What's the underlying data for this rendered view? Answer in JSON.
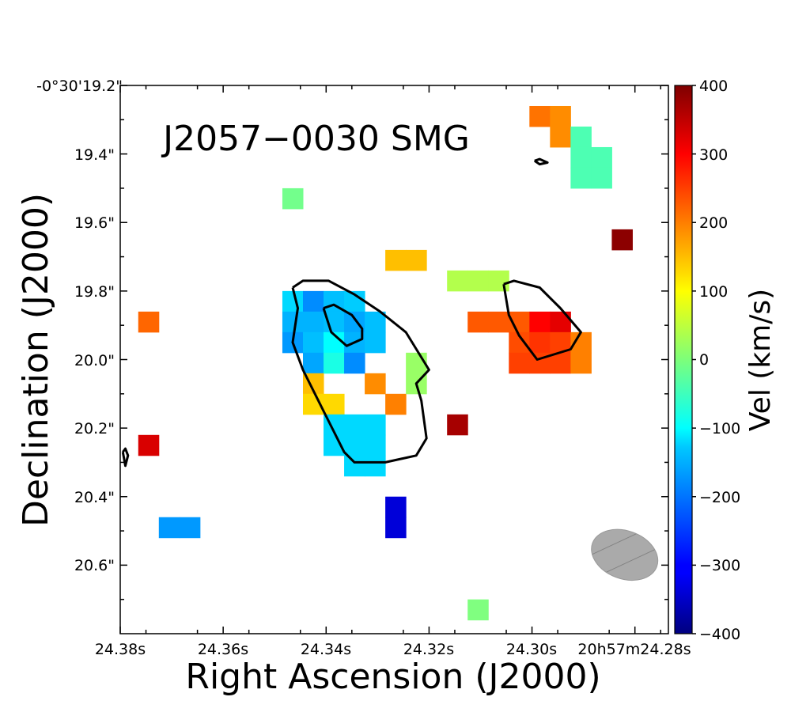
{
  "chart_data": {
    "type": "heatmap",
    "title": "J2057−0030 SMG",
    "xlabel": "Right Ascension (J2000)",
    "ylabel": "Declination (J2000)",
    "xlim": [
      24.38,
      24.2735
    ],
    "ylim": [
      20.8,
      19.2
    ],
    "x_tick_values": [
      24.38,
      24.36,
      24.34,
      24.32,
      24.3,
      24.28
    ],
    "x_tick_labels": [
      "24.38s",
      "24.36s",
      "24.34s",
      "24.32s",
      "24.30s",
      "20h57m24.28s"
    ],
    "y_tick_values": [
      19.2,
      19.4,
      19.6,
      19.8,
      20.0,
      20.2,
      20.4,
      20.6
    ],
    "y_tick_labels": [
      "-0°30'19.2\"",
      "19.4\"",
      "19.6\"",
      "19.8\"",
      "20.0\"",
      "20.2\"",
      "20.4\"",
      "20.6\""
    ],
    "colorbar": {
      "label": "Vel (km/s)",
      "vmin": -400,
      "vmax": 400,
      "tick_values": [
        400,
        300,
        200,
        100,
        0,
        -100,
        -200,
        -300,
        -400
      ],
      "tick_labels": [
        "400",
        "300",
        "200",
        "100",
        "0",
        "−100",
        "−200",
        "−300",
        "−400"
      ]
    },
    "pixel_size_ra_s": 0.004,
    "pixel_size_dec_arcsec": 0.06,
    "pixels": [
      {
        "ra": 24.2985,
        "dec": 19.29,
        "vel": 210
      },
      {
        "ra": 24.2945,
        "dec": 19.29,
        "vel": 190
      },
      {
        "ra": 24.2945,
        "dec": 19.35,
        "vel": 190
      },
      {
        "ra": 24.2905,
        "dec": 19.35,
        "vel": -40
      },
      {
        "ra": 24.2905,
        "dec": 19.41,
        "vel": -40
      },
      {
        "ra": 24.2865,
        "dec": 19.41,
        "vel": -40
      },
      {
        "ra": 24.2905,
        "dec": 19.47,
        "vel": -40
      },
      {
        "ra": 24.2865,
        "dec": 19.47,
        "vel": -40
      },
      {
        "ra": 24.2825,
        "dec": 19.65,
        "vel": 390
      },
      {
        "ra": 24.3465,
        "dec": 19.53,
        "vel": -10
      },
      {
        "ra": 24.3265,
        "dec": 19.71,
        "vel": 150
      },
      {
        "ra": 24.3225,
        "dec": 19.71,
        "vel": 150
      },
      {
        "ra": 24.3145,
        "dec": 19.77,
        "vel": 40
      },
      {
        "ra": 24.3105,
        "dec": 19.77,
        "vel": 40
      },
      {
        "ra": 24.3065,
        "dec": 19.77,
        "vel": 40
      },
      {
        "ra": 24.3745,
        "dec": 19.89,
        "vel": 220
      },
      {
        "ra": 24.3465,
        "dec": 19.83,
        "vel": -130
      },
      {
        "ra": 24.3425,
        "dec": 19.83,
        "vel": -190
      },
      {
        "ra": 24.3385,
        "dec": 19.83,
        "vel": -150
      },
      {
        "ra": 24.3345,
        "dec": 19.83,
        "vel": -140
      },
      {
        "ra": 24.3465,
        "dec": 19.89,
        "vel": -160
      },
      {
        "ra": 24.3425,
        "dec": 19.89,
        "vel": -160
      },
      {
        "ra": 24.3385,
        "dec": 19.89,
        "vel": -150
      },
      {
        "ra": 24.3345,
        "dec": 19.89,
        "vel": -170
      },
      {
        "ra": 24.3305,
        "dec": 19.89,
        "vel": -150
      },
      {
        "ra": 24.3465,
        "dec": 19.95,
        "vel": -180
      },
      {
        "ra": 24.3425,
        "dec": 19.95,
        "vel": -150
      },
      {
        "ra": 24.3385,
        "dec": 19.95,
        "vel": -100
      },
      {
        "ra": 24.3345,
        "dec": 19.95,
        "vel": -160
      },
      {
        "ra": 24.3305,
        "dec": 19.95,
        "vel": -150
      },
      {
        "ra": 24.3425,
        "dec": 20.01,
        "vel": -170
      },
      {
        "ra": 24.3385,
        "dec": 20.01,
        "vel": -80
      },
      {
        "ra": 24.3345,
        "dec": 20.01,
        "vel": -190
      },
      {
        "ra": 24.3425,
        "dec": 20.07,
        "vel": 150
      },
      {
        "ra": 24.3425,
        "dec": 20.13,
        "vel": 130
      },
      {
        "ra": 24.3385,
        "dec": 20.13,
        "vel": 130
      },
      {
        "ra": 24.3305,
        "dec": 20.07,
        "vel": 190
      },
      {
        "ra": 24.3265,
        "dec": 20.13,
        "vel": 200
      },
      {
        "ra": 24.3225,
        "dec": 20.01,
        "vel": 20
      },
      {
        "ra": 24.3225,
        "dec": 20.07,
        "vel": 20
      },
      {
        "ra": 24.3385,
        "dec": 20.19,
        "vel": -130
      },
      {
        "ra": 24.3345,
        "dec": 20.19,
        "vel": -130
      },
      {
        "ra": 24.3305,
        "dec": 20.19,
        "vel": -130
      },
      {
        "ra": 24.3385,
        "dec": 20.25,
        "vel": -130
      },
      {
        "ra": 24.3345,
        "dec": 20.25,
        "vel": -130
      },
      {
        "ra": 24.3305,
        "dec": 20.25,
        "vel": -130
      },
      {
        "ra": 24.3345,
        "dec": 20.31,
        "vel": -130
      },
      {
        "ra": 24.3305,
        "dec": 20.31,
        "vel": -130
      },
      {
        "ra": 24.3145,
        "dec": 20.19,
        "vel": 370
      },
      {
        "ra": 24.3745,
        "dec": 20.25,
        "vel": 330
      },
      {
        "ra": 24.3265,
        "dec": 20.43,
        "vel": -330
      },
      {
        "ra": 24.3265,
        "dec": 20.49,
        "vel": -330
      },
      {
        "ra": 24.3705,
        "dec": 20.49,
        "vel": -180
      },
      {
        "ra": 24.3665,
        "dec": 20.49,
        "vel": -180
      },
      {
        "ra": 24.3105,
        "dec": 20.73,
        "vel": 0
      },
      {
        "ra": 24.3105,
        "dec": 19.89,
        "vel": 230
      },
      {
        "ra": 24.3065,
        "dec": 19.89,
        "vel": 230
      },
      {
        "ra": 24.3025,
        "dec": 19.89,
        "vel": 230
      },
      {
        "ra": 24.2985,
        "dec": 19.89,
        "vel": 300
      },
      {
        "ra": 24.2945,
        "dec": 19.89,
        "vel": 320
      },
      {
        "ra": 24.3025,
        "dec": 19.95,
        "vel": 240
      },
      {
        "ra": 24.2985,
        "dec": 19.95,
        "vel": 260
      },
      {
        "ra": 24.2945,
        "dec": 19.95,
        "vel": 250
      },
      {
        "ra": 24.2905,
        "dec": 19.95,
        "vel": 200
      },
      {
        "ra": 24.3025,
        "dec": 20.01,
        "vel": 250
      },
      {
        "ra": 24.2985,
        "dec": 20.01,
        "vel": 250
      },
      {
        "ra": 24.2945,
        "dec": 20.01,
        "vel": 250
      },
      {
        "ra": 24.2905,
        "dec": 20.01,
        "vel": 200
      }
    ],
    "contours": [
      {
        "name": "outer-left",
        "points": [
          [
            24.3465,
            19.79
          ],
          [
            24.3445,
            19.77
          ],
          [
            24.3395,
            19.77
          ],
          [
            24.3345,
            19.81
          ],
          [
            24.3295,
            19.86
          ],
          [
            24.3245,
            19.92
          ],
          [
            24.32,
            20.03
          ],
          [
            24.3225,
            20.07
          ],
          [
            24.3215,
            20.12
          ],
          [
            24.3205,
            20.23
          ],
          [
            24.3225,
            20.28
          ],
          [
            24.3285,
            20.3
          ],
          [
            24.3345,
            20.3
          ],
          [
            24.3365,
            20.27
          ],
          [
            24.3405,
            20.15
          ],
          [
            24.3445,
            20.03
          ],
          [
            24.3465,
            19.95
          ],
          [
            24.3455,
            19.85
          ],
          [
            24.3465,
            19.79
          ]
        ]
      },
      {
        "name": "inner-left",
        "points": [
          [
            24.3405,
            19.85
          ],
          [
            24.3385,
            19.84
          ],
          [
            24.335,
            19.87
          ],
          [
            24.333,
            19.91
          ],
          [
            24.333,
            19.94
          ],
          [
            24.336,
            19.96
          ],
          [
            24.339,
            19.92
          ],
          [
            24.3405,
            19.85
          ]
        ]
      },
      {
        "name": "outer-right",
        "points": [
          [
            24.3055,
            19.78
          ],
          [
            24.3035,
            19.77
          ],
          [
            24.2985,
            19.79
          ],
          [
            24.2945,
            19.85
          ],
          [
            24.2905,
            19.92
          ],
          [
            24.2925,
            19.97
          ],
          [
            24.299,
            20.0
          ],
          [
            24.3025,
            19.93
          ],
          [
            24.3045,
            19.87
          ],
          [
            24.3055,
            19.78
          ]
        ]
      },
      {
        "name": "speck-top",
        "points": [
          [
            24.2995,
            19.42
          ],
          [
            24.2985,
            19.415
          ],
          [
            24.297,
            19.425
          ],
          [
            24.2985,
            19.43
          ],
          [
            24.2995,
            19.42
          ]
        ]
      },
      {
        "name": "speck-left",
        "points": [
          [
            24.3795,
            20.27
          ],
          [
            24.379,
            20.26
          ],
          [
            24.3785,
            20.28
          ],
          [
            24.379,
            20.31
          ],
          [
            24.3795,
            20.27
          ]
        ]
      }
    ],
    "beam": {
      "ra": 24.282,
      "dec": 20.57,
      "major_arcsec": 0.2,
      "minor_arcsec": 0.14,
      "pa_deg": 20
    }
  }
}
